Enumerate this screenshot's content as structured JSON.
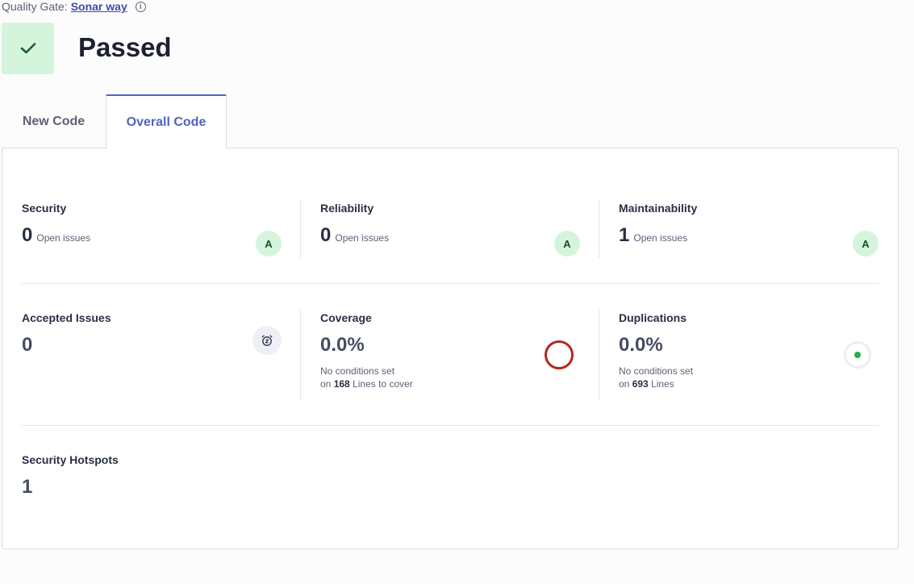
{
  "quality_gate": {
    "prefix": "Quality Gate:",
    "link": "Sonar way",
    "info_icon": "info-icon",
    "status": "Passed",
    "status_icon": "check-icon",
    "status_color": "#d4f5dc"
  },
  "tabs": [
    {
      "label": "New Code",
      "active": false
    },
    {
      "label": "Overall Code",
      "active": true
    }
  ],
  "accent_color": "#5262c4",
  "metrics": {
    "security": {
      "label": "Security",
      "count": "0",
      "sub": "Open issues",
      "rating": "A"
    },
    "reliability": {
      "label": "Reliability",
      "count": "0",
      "sub": "Open issues",
      "rating": "A"
    },
    "maintainability": {
      "label": "Maintainability",
      "count": "1",
      "sub": "Open issues",
      "rating": "A"
    },
    "accepted": {
      "label": "Accepted Issues",
      "count": "0",
      "icon": "alarm-clock-icon"
    },
    "coverage": {
      "label": "Coverage",
      "value": "0.0%",
      "note_line1": "No conditions set",
      "note_prefix": "on",
      "note_number": "168",
      "note_suffix": "Lines to cover",
      "ring_color": "#b3261e"
    },
    "duplications": {
      "label": "Duplications",
      "value": "0.0%",
      "note_line1": "No conditions set",
      "note_prefix": "on",
      "note_number": "693",
      "note_suffix": "Lines",
      "dot_color": "#22b14c"
    },
    "hotspots": {
      "label": "Security Hotspots",
      "count": "1"
    }
  }
}
